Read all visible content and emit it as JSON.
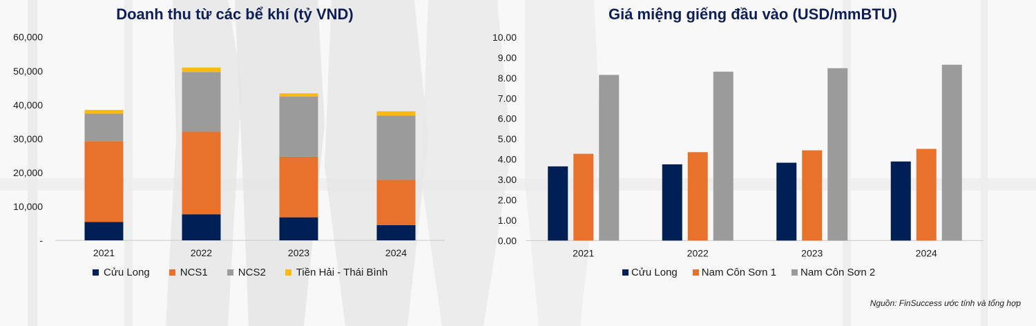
{
  "colors": {
    "navy": "#001f54",
    "orange": "#e8722c",
    "gray": "#9b9b9b",
    "yellow": "#fdb913",
    "title": "#0e1f56",
    "axis": "#c8c8c8"
  },
  "source_note": "Nguồn: FinSuccess ước tính và tổng hợp",
  "chart_data": [
    {
      "type": "bar",
      "stacked": true,
      "title": "Doanh thu từ các bể khí (tỷ VND)",
      "xlabel": "",
      "ylabel": "",
      "categories": [
        "2021",
        "2022",
        "2023",
        "2024"
      ],
      "ylim": [
        0,
        60000
      ],
      "yticks": [
        0,
        10000,
        20000,
        30000,
        40000,
        50000,
        60000
      ],
      "ytick_labels": [
        "-",
        "10,000",
        "20,000",
        "30,000",
        "40,000",
        "50,000",
        "60,000"
      ],
      "grid": false,
      "legend_position": "bottom",
      "series": [
        {
          "name": "Cửu Long",
          "color": "#001f54",
          "values": [
            5400,
            7700,
            6800,
            4500
          ]
        },
        {
          "name": "NCS1",
          "color": "#e8722c",
          "values": [
            23900,
            24400,
            17900,
            13400
          ]
        },
        {
          "name": "NCS2",
          "color": "#9b9b9b",
          "values": [
            8100,
            17600,
            17700,
            18900
          ]
        },
        {
          "name": "Tiền Hải - Thái Bình",
          "color": "#fdb913",
          "values": [
            1100,
            1300,
            1000,
            1300
          ]
        }
      ]
    },
    {
      "type": "bar",
      "stacked": false,
      "title": "Giá miệng giếng đầu vào (USD/mmBTU)",
      "xlabel": "",
      "ylabel": "",
      "categories": [
        "2021",
        "2022",
        "2023",
        "2024"
      ],
      "ylim": [
        0,
        10
      ],
      "yticks": [
        0,
        1,
        2,
        3,
        4,
        5,
        6,
        7,
        8,
        9,
        10
      ],
      "ytick_labels": [
        "0.00",
        "1.00",
        "2.00",
        "3.00",
        "4.00",
        "5.00",
        "6.00",
        "7.00",
        "8.00",
        "9.00",
        "10.00"
      ],
      "grid": false,
      "legend_position": "bottom",
      "series": [
        {
          "name": "Cửu Long",
          "color": "#001f54",
          "values": [
            3.65,
            3.75,
            3.83,
            3.89
          ]
        },
        {
          "name": "Nam Côn Sơn 1",
          "color": "#e8722c",
          "values": [
            4.27,
            4.35,
            4.44,
            4.51
          ]
        },
        {
          "name": "Nam Côn Sơn 2",
          "color": "#9b9b9b",
          "values": [
            8.15,
            8.31,
            8.48,
            8.65
          ]
        }
      ]
    }
  ]
}
